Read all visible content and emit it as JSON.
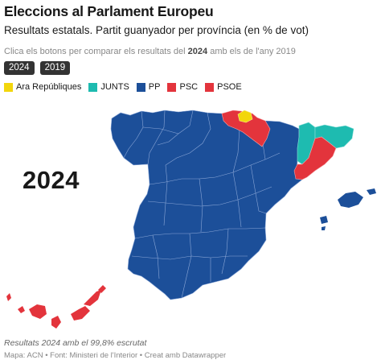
{
  "header": {
    "title": "Eleccions al Parlament Europeu",
    "subtitle": "Resultats estatals. Partit guanyador per província (en % de vot)",
    "hint_prefix": "Clica els botons per comparar els resultats del",
    "hint_year": "2024",
    "hint_suffix": "amb els de l'any 2019"
  },
  "year_buttons": [
    {
      "label": "2024"
    },
    {
      "label": "2019"
    }
  ],
  "legend": [
    {
      "label": "Ara Repúbliques",
      "color": "#f2d60c"
    },
    {
      "label": "JUNTS",
      "color": "#1ebbb0"
    },
    {
      "label": "PP",
      "color": "#1c4f99"
    },
    {
      "label": "PSC",
      "color": "#e3343c"
    },
    {
      "label": "PSOE",
      "color": "#e3343c"
    }
  ],
  "map": {
    "selected_year": "2024",
    "winners": {
      "PP": "rest of provinces",
      "PSOE": [
        "Gipuzkoa region",
        "Navarra",
        "Barcelona area"
      ],
      "JUNTS": [
        "Girona",
        "Lleida"
      ],
      "Ara Repúbliques": [
        "Bizkaia"
      ]
    }
  },
  "footer": {
    "note": "Resultats 2024 amb el 99,8% escrutat",
    "source": "Mapa: ACN • Font: Ministeri de l'Interior • Creat amb Datawrapper"
  }
}
